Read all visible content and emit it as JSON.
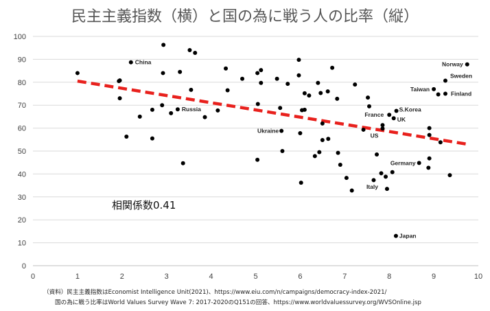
{
  "chart_data": {
    "type": "scatter",
    "title": "民主主義指数（横）と国の為に戦う人の比率（縦）",
    "xlabel": "",
    "ylabel": "",
    "xlim": [
      0,
      10
    ],
    "ylim": [
      0,
      100
    ],
    "xticks": [
      "0",
      "1",
      "2",
      "3",
      "4",
      "5",
      "6",
      "7",
      "8",
      "9",
      "10"
    ],
    "yticks": [
      "0",
      "10",
      "20",
      "30",
      "40",
      "50",
      "60",
      "70",
      "80",
      "90",
      "100"
    ],
    "grid": "horizontal",
    "trendline": {
      "x1": 1.0,
      "y1": 80.5,
      "x2": 9.75,
      "y2": 53.0,
      "color": "#e8201c",
      "style": "dashed"
    },
    "correlation_label": "相関係数0.41",
    "point_color": "#000000",
    "points": [
      {
        "x": 1.0,
        "y": 84
      },
      {
        "x": 1.93,
        "y": 80.5
      },
      {
        "x": 1.95,
        "y": 80.8
      },
      {
        "x": 1.95,
        "y": 73
      },
      {
        "x": 2.1,
        "y": 56.3
      },
      {
        "x": 2.2,
        "y": 88.7,
        "label": "China"
      },
      {
        "x": 2.4,
        "y": 65
      },
      {
        "x": 2.68,
        "y": 68
      },
      {
        "x": 2.68,
        "y": 55.5
      },
      {
        "x": 2.93,
        "y": 96.3
      },
      {
        "x": 2.92,
        "y": 84
      },
      {
        "x": 2.9,
        "y": 70
      },
      {
        "x": 3.1,
        "y": 66.5
      },
      {
        "x": 3.25,
        "y": 68.2,
        "label": "Russia"
      },
      {
        "x": 3.3,
        "y": 84.5
      },
      {
        "x": 3.37,
        "y": 44.7
      },
      {
        "x": 3.52,
        "y": 94
      },
      {
        "x": 3.55,
        "y": 76.7
      },
      {
        "x": 3.64,
        "y": 92.8
      },
      {
        "x": 3.86,
        "y": 64.8
      },
      {
        "x": 4.15,
        "y": 67.7
      },
      {
        "x": 4.33,
        "y": 86
      },
      {
        "x": 4.37,
        "y": 76.5
      },
      {
        "x": 4.7,
        "y": 81.5
      },
      {
        "x": 5.04,
        "y": 84
      },
      {
        "x": 5.04,
        "y": 46.2
      },
      {
        "x": 5.05,
        "y": 70.5
      },
      {
        "x": 5.12,
        "y": 85.3
      },
      {
        "x": 5.12,
        "y": 79.7
      },
      {
        "x": 5.48,
        "y": 81.5
      },
      {
        "x": 5.55,
        "y": 68.8
      },
      {
        "x": 5.58,
        "y": 58.8,
        "label": "Ukraine"
      },
      {
        "x": 5.6,
        "y": 50
      },
      {
        "x": 5.72,
        "y": 79.3
      },
      {
        "x": 5.97,
        "y": 89.8
      },
      {
        "x": 5.97,
        "y": 83
      },
      {
        "x": 6.0,
        "y": 57.8
      },
      {
        "x": 6.02,
        "y": 36.2
      },
      {
        "x": 6.04,
        "y": 67.8
      },
      {
        "x": 6.1,
        "y": 68
      },
      {
        "x": 6.1,
        "y": 75.2
      },
      {
        "x": 6.2,
        "y": 74.2
      },
      {
        "x": 6.33,
        "y": 47.8
      },
      {
        "x": 6.4,
        "y": 79.7
      },
      {
        "x": 6.43,
        "y": 49.5
      },
      {
        "x": 6.46,
        "y": 75.3
      },
      {
        "x": 6.5,
        "y": 62
      },
      {
        "x": 6.5,
        "y": 54.8
      },
      {
        "x": 6.62,
        "y": 76
      },
      {
        "x": 6.63,
        "y": 55.3
      },
      {
        "x": 6.72,
        "y": 86.3
      },
      {
        "x": 6.83,
        "y": 72.8
      },
      {
        "x": 6.85,
        "y": 49.2
      },
      {
        "x": 6.9,
        "y": 44
      },
      {
        "x": 7.04,
        "y": 38.3
      },
      {
        "x": 7.16,
        "y": 32.8
      },
      {
        "x": 7.23,
        "y": 79
      },
      {
        "x": 7.42,
        "y": 59.3
      },
      {
        "x": 7.52,
        "y": 73.3
      },
      {
        "x": 7.55,
        "y": 69.5
      },
      {
        "x": 7.65,
        "y": 37.3
      },
      {
        "x": 7.72,
        "y": 48.5
      },
      {
        "x": 7.82,
        "y": 40.3
      },
      {
        "x": 7.85,
        "y": 59.8,
        "label": "US"
      },
      {
        "x": 7.85,
        "y": 61.3
      },
      {
        "x": 7.92,
        "y": 38.8
      },
      {
        "x": 7.95,
        "y": 33.5,
        "label": "Italy"
      },
      {
        "x": 8.0,
        "y": 65.8,
        "label": "France"
      },
      {
        "x": 8.07,
        "y": 40.8
      },
      {
        "x": 8.1,
        "y": 64.3,
        "label": "UK"
      },
      {
        "x": 8.16,
        "y": 67.5,
        "label": "S.Korea"
      },
      {
        "x": 8.15,
        "y": 13.0,
        "label": "Japan"
      },
      {
        "x": 8.67,
        "y": 44.8,
        "label": "Germany"
      },
      {
        "x": 8.9,
        "y": 60
      },
      {
        "x": 8.9,
        "y": 57
      },
      {
        "x": 8.9,
        "y": 46.8
      },
      {
        "x": 8.88,
        "y": 42.7
      },
      {
        "x": 9.0,
        "y": 77,
        "label": "Taiwan"
      },
      {
        "x": 9.1,
        "y": 74.7
      },
      {
        "x": 9.15,
        "y": 53.8
      },
      {
        "x": 9.26,
        "y": 80.7,
        "label": "Sweden"
      },
      {
        "x": 9.26,
        "y": 75,
        "label": "Finland"
      },
      {
        "x": 9.36,
        "y": 39.5
      },
      {
        "x": 9.75,
        "y": 87.8,
        "label": "Norway"
      }
    ]
  },
  "source": {
    "line1": "（資料）民主主義指数はEconomist Intelligence Unit(2021)、https://www.eiu.com/n/campaigns/democracy-index-2021/",
    "line2": "国の為に戦う比率はWorld Values Survey Wave 7: 2017-2020のQ151の回答、https://www.worldvaluessurvey.org/WVSOnline.jsp"
  }
}
